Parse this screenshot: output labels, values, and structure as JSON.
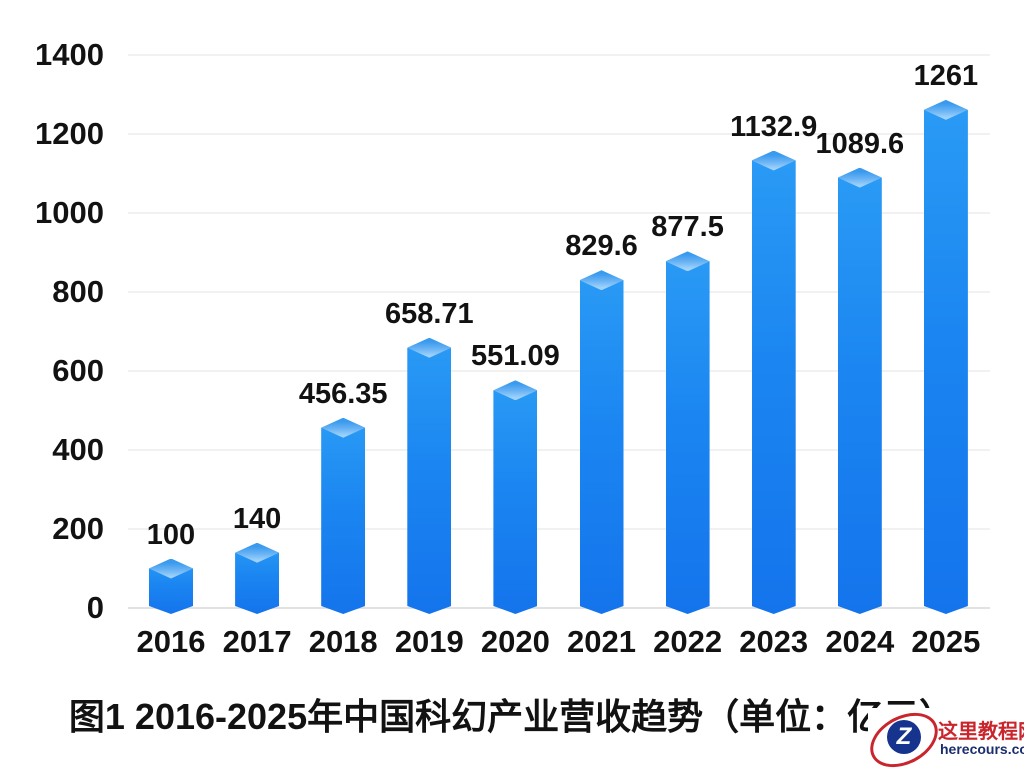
{
  "chart_data": {
    "type": "bar",
    "title": "图1 2016-2025年中国科幻产业营收趋势（单位：亿元）",
    "categories": [
      "2016",
      "2017",
      "2018",
      "2019",
      "2020",
      "2021",
      "2022",
      "2023",
      "2024",
      "2025"
    ],
    "values": [
      100,
      140,
      456.35,
      658.71,
      551.09,
      829.6,
      877.5,
      1132.9,
      1089.6,
      1261
    ],
    "value_labels": [
      "100",
      "140",
      "456.35",
      "658.71",
      "551.09",
      "829.6",
      "877.5",
      "1132.9",
      "1089.6",
      "1261"
    ],
    "xlabel": "",
    "ylabel": "",
    "ylim": [
      0,
      1400
    ],
    "yticks": [
      0,
      200,
      400,
      600,
      800,
      1000,
      1200,
      1400
    ],
    "grid": true,
    "legend": "none",
    "bar_color_top": "#2a9bf5",
    "bar_color_bottom": "#1474ec",
    "bar_cap_dark": "#3a9aee",
    "bar_cap_light": "#9ed2fa",
    "text_color": "#121212",
    "gridline_color": "#f1f1f1"
  },
  "watermark": {
    "site_name": "这里教程网",
    "site_domain": "herecours.com",
    "logo_letter": "Z",
    "accent_red": "#c9252c",
    "logo_navy": "#16338e"
  }
}
